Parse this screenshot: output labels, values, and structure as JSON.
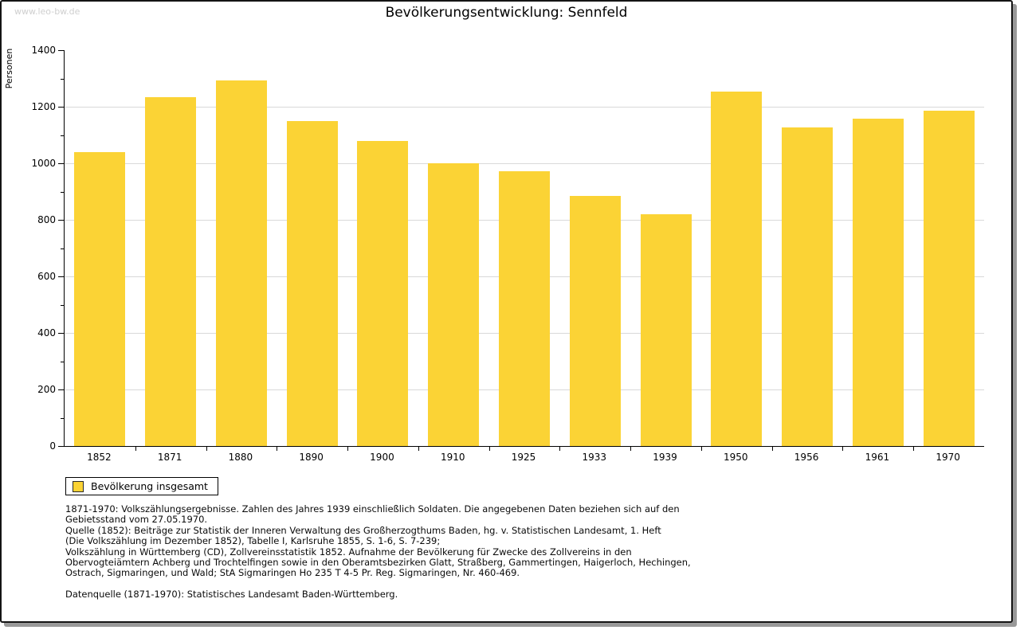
{
  "watermark": "www.leo-bw.de",
  "title": "Bevölkerungsentwicklung: Sennfeld",
  "chart_data": {
    "type": "bar",
    "title": "Bevölkerungsentwicklung: Sennfeld",
    "xlabel": "",
    "ylabel": "Personen",
    "ylim": [
      0,
      1400
    ],
    "yticks": [
      0,
      200,
      400,
      600,
      800,
      1000,
      1200,
      1400
    ],
    "minor_tick_step": 100,
    "grid": "horizontal",
    "legend_position": "bottom-left",
    "categories": [
      "1852",
      "1871",
      "1880",
      "1890",
      "1900",
      "1910",
      "1925",
      "1933",
      "1939",
      "1950",
      "1956",
      "1961",
      "1970"
    ],
    "series": [
      {
        "name": "Bevölkerung insgesamt",
        "values": [
          1040,
          1233,
          1292,
          1150,
          1080,
          1000,
          972,
          885,
          820,
          1253,
          1126,
          1157,
          1186
        ]
      }
    ],
    "bar_color": "#FBD335",
    "grid_color": "#D9D9D9"
  },
  "legend": {
    "label": "Bevölkerung insgesamt"
  },
  "notes_lines": [
    "1871-1970: Volkszählungsergebnisse. Zahlen des Jahres 1939 einschließlich Soldaten. Die angegebenen Daten beziehen sich auf den",
    "Gebietsstand vom 27.05.1970.",
    "Quelle (1852): Beiträge zur Statistik der Inneren Verwaltung des Großherzogthums Baden, hg. v. Statistischen Landesamt, 1. Heft",
    "(Die Volkszählung im Dezember 1852), Tabelle I, Karlsruhe 1855, S. 1-6, S. 7-239;",
    "Volkszählung in Württemberg (CD), Zollvereinsstatistik 1852. Aufnahme der Bevölkerung für Zwecke des Zollvereins in den",
    "Obervogteiämtern Achberg und Trochtelfingen sowie in den Oberamtsbezirken Glatt, Straßberg, Gammertingen, Haigerloch, Hechingen,",
    "Ostrach, Sigmaringen, und Wald; StA Sigmaringen Ho 235 T 4-5 Pr. Reg. Sigmaringen, Nr. 460-469."
  ],
  "source": "Datenquelle (1871-1970): Statistisches Landesamt Baden-Württemberg."
}
